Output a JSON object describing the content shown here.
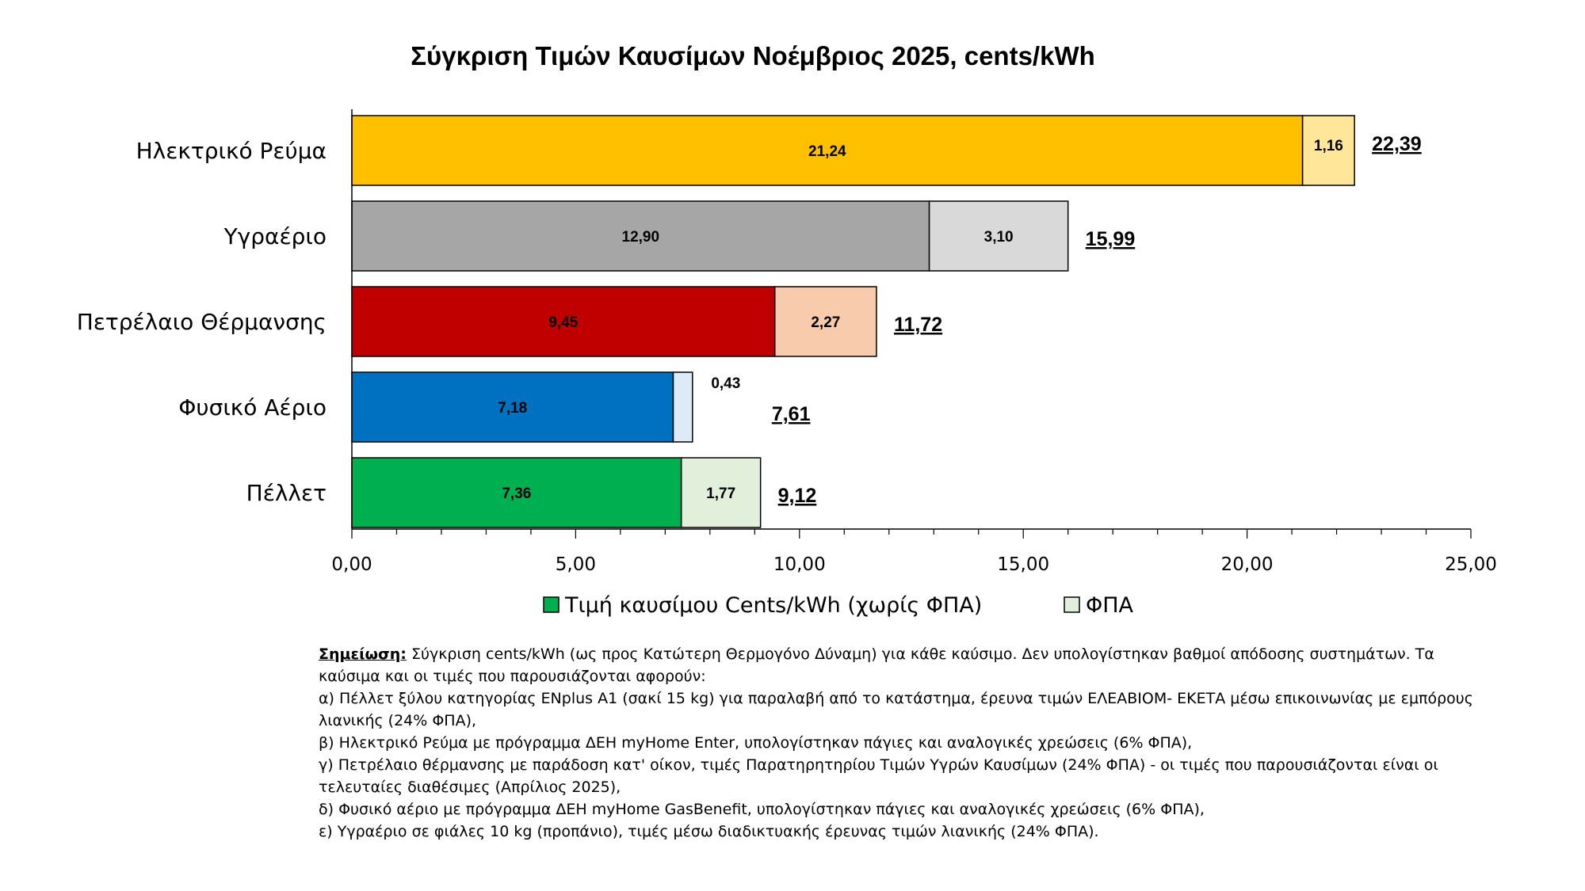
{
  "chart_data": {
    "type": "bar",
    "orientation": "horizontal",
    "stacked": true,
    "title": "Σύγκριση Τιμών Καυσίμων Νοέμβριος 2025, cents/kWh",
    "categories": [
      "Ηλεκτρικό Ρεύμα",
      "Υγραέριο",
      "Πετρέλαιο Θέρμανσης",
      "Φυσικό Αέριο",
      "Πέλλετ"
    ],
    "series": [
      {
        "name": "Τιμή καυσίμου Cents/kWh (χωρίς ΦΠΑ)",
        "values": [
          21.24,
          12.9,
          9.45,
          7.18,
          7.36
        ],
        "labels": [
          "21,24",
          "12,90",
          "9,45",
          "7,18",
          "7,36"
        ],
        "colors": [
          "#FFC000",
          "#A6A6A6",
          "#C00000",
          "#0070C0",
          "#00B050"
        ]
      },
      {
        "name": "ΦΠΑ",
        "values": [
          1.16,
          3.1,
          2.27,
          0.43,
          1.77
        ],
        "labels": [
          "1,16",
          "3,10",
          "2,27",
          "0,43",
          "1,77"
        ],
        "colors": [
          "#FFE699",
          "#D9D9D9",
          "#F8CBAD",
          "#DDEBF7",
          "#E2EFDA"
        ]
      }
    ],
    "totals": [
      22.39,
      15.99,
      11.72,
      7.61,
      9.12
    ],
    "total_labels": [
      "22,39",
      "15,99",
      "11,72",
      "7,61",
      "9,12"
    ],
    "xlim": [
      0,
      25
    ],
    "xticks": [
      0,
      5,
      10,
      15,
      20,
      25
    ],
    "xtick_labels": [
      "0,00",
      "5,00",
      "10,00",
      "15,00",
      "20,00",
      "25,00"
    ],
    "xlabel": "",
    "ylabel": "",
    "grid": false,
    "legend_position": "bottom",
    "legend_colors": [
      "#00B050",
      "#E2EFDA"
    ]
  },
  "note": {
    "label": "Σημείωση:",
    "intro": " Σύγκριση cents/kWh (ως προς Κατώτερη Θερμογόνο Δύναμη) για κάθε καύσιμο. Δεν υπολογίστηκαν βαθμοί απόδοσης συστημάτων. Τα καύσιμα και οι τιμές που παρουσιάζονται αφορούν:",
    "items": [
      "α) Πέλλετ ξύλου κατηγορίας ENplus A1 (σακί 15 kg) για παραλαβή από το κατάστημα, έρευνα τιμών ΕΛΕΑΒΙΟΜ- ΕΚΕΤΑ μέσω  επικοινωνίας με εμπόρους λιανικής (24% ΦΠΑ),",
      "β) Ηλεκτρικό Ρεύμα με πρόγραμμα ΔΕΗ myHome Enter, υπολογίστηκαν πάγιες και αναλογικές χρεώσεις (6% ΦΠΑ),",
      "γ) Πετρέλαιο θέρμανσης με παράδοση κατ' οίκον, τιμές Παρατηρητηρίου Τιμών Υγρών Καυσίμων (24% ΦΠΑ) - οι τιμές που παρουσιάζονται είναι οι τελευταίες διαθέσιμες (Απρίλιος 2025),",
      "δ) Φυσικό αέριο με πρόγραμμα ΔΕΗ myHome GasBenefit, υπολογίστηκαν πάγιες και αναλογικές χρεώσεις (6% ΦΠΑ),",
      "ε) Υγραέριο σε φιάλες 10 kg (προπάνιο), τιμές μέσω διαδικτυακής έρευνας τιμών λιανικής (24% ΦΠΑ)."
    ]
  }
}
